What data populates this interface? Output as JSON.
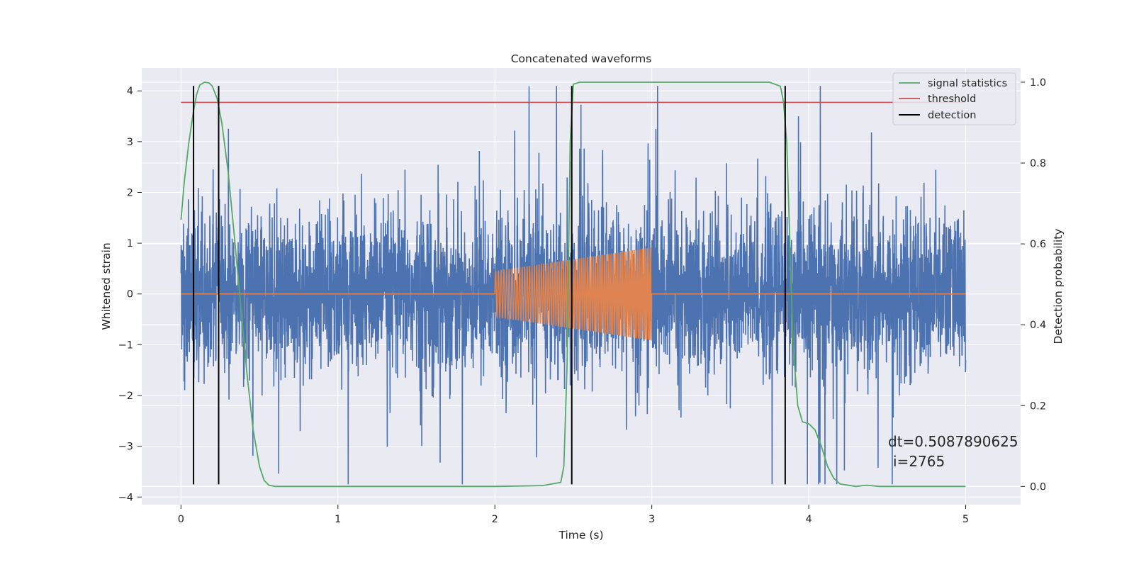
{
  "chart_data": {
    "type": "line",
    "title": "Concatenated waveforms",
    "xlabel": "Time (s)",
    "ylabel": "Whitened strain",
    "ylabel_right": "Detection probability",
    "xlim": [
      -0.25,
      5.35
    ],
    "ylim": [
      -4.15,
      4.45
    ],
    "ylim_right": [
      -0.045,
      1.035
    ],
    "grid": true,
    "legend_position": "top-right",
    "x_ticks": [
      0,
      1,
      2,
      3,
      4,
      5
    ],
    "y_ticks": [
      -4,
      -3,
      -2,
      -1,
      0,
      1,
      2,
      3,
      4
    ],
    "y_right_ticks": [
      "0.0",
      "0.2",
      "0.4",
      "0.6",
      "0.8",
      "1.0"
    ],
    "colors": {
      "strain": "#4c72b0",
      "injected": "#dd8452",
      "signal_statistics": "#55a868",
      "threshold": "#c44e52",
      "detection": "#000000",
      "background": "#eaeaf2",
      "grid": "#ffffff"
    },
    "series": [
      {
        "role": "whitened-strain",
        "axis": "left",
        "x_range": [
          0,
          5
        ],
        "amplitude_envelope": [
          -3.75,
          4.1
        ]
      },
      {
        "role": "injected-waveform",
        "axis": "left",
        "x_range": [
          0,
          5
        ],
        "chirp": {
          "t_start": 2.0,
          "t_end": 3.0,
          "amp_start": 0.45,
          "amp_end": 0.92
        }
      },
      {
        "name": "signal statistics",
        "axis": "right",
        "x": [
          0,
          0.02,
          0.05,
          0.08,
          0.1,
          0.12,
          0.15,
          0.18,
          0.2,
          0.23,
          0.26,
          0.3,
          0.34,
          0.38,
          0.42,
          0.46,
          0.5,
          0.53,
          0.56,
          0.6,
          1.0,
          2.0,
          2.3,
          2.42,
          2.44,
          2.46,
          2.48,
          2.5,
          2.54,
          2.6,
          3.0,
          3.5,
          3.75,
          3.82,
          3.84,
          3.86,
          3.88,
          3.9,
          3.93,
          3.96,
          4.0,
          4.04,
          4.08,
          4.12,
          4.16,
          4.2,
          4.3,
          4.37,
          4.45,
          4.6,
          5.0
        ],
        "y": [
          0.66,
          0.75,
          0.85,
          0.93,
          0.97,
          0.993,
          1.0,
          0.998,
          0.99,
          0.96,
          0.9,
          0.78,
          0.62,
          0.45,
          0.28,
          0.14,
          0.05,
          0.015,
          0.003,
          0.0,
          0.0,
          0.0,
          0.002,
          0.01,
          0.05,
          0.3,
          0.85,
          0.995,
          1.0,
          1.0,
          1.0,
          1.0,
          1.0,
          0.99,
          0.95,
          0.85,
          0.6,
          0.35,
          0.2,
          0.16,
          0.155,
          0.14,
          0.1,
          0.05,
          0.02,
          0.006,
          0.0,
          0.003,
          0.0,
          0.0,
          0.0
        ]
      },
      {
        "name": "threshold",
        "axis": "right",
        "x": [
          0,
          5
        ],
        "y": [
          0.95,
          0.95
        ]
      }
    ],
    "detection_label": "detection",
    "detections_x": [
      0.08,
      0.24,
      2.49,
      3.85
    ],
    "annotation": {
      "dt": "dt=0.5087890625",
      "i": "i=2765"
    }
  }
}
